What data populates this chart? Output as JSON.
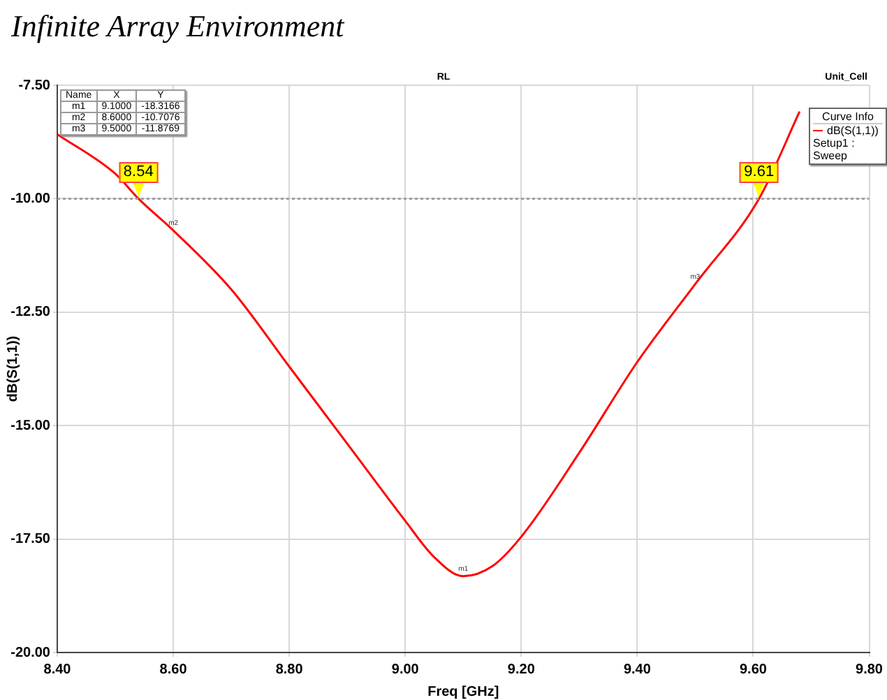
{
  "chart_data": {
    "type": "line",
    "title": "Infinite Array Environment",
    "subtitle": "RL",
    "xlabel": "Freq [GHz]",
    "ylabel": "dB(S(1,1))",
    "legend_title": "Curve Info",
    "legend": "top right",
    "series": [
      {
        "name": "dB(S(1,1))",
        "color": "#ff0000",
        "x": [
          8.4,
          8.5,
          8.54,
          8.6,
          8.7,
          8.8,
          8.9,
          9.0,
          9.05,
          9.1,
          9.15,
          9.2,
          9.3,
          9.4,
          9.5,
          9.61,
          9.68
        ],
        "values": [
          -8.58,
          -9.45,
          -10.0,
          -10.7,
          -12.0,
          -13.7,
          -15.4,
          -17.1,
          -17.9,
          -18.32,
          -18.1,
          -17.45,
          -15.6,
          -13.6,
          -11.88,
          -10.0,
          -8.08
        ]
      }
    ],
    "xlim": [
      8.4,
      9.8
    ],
    "ylim": [
      -20,
      -7.5
    ],
    "xticks": [
      {
        "value": 8.4,
        "label": "8.40"
      },
      {
        "value": 8.6,
        "label": "8.60"
      },
      {
        "value": 8.8,
        "label": "8.80"
      },
      {
        "value": 9.0,
        "label": "9.00"
      },
      {
        "value": 9.2,
        "label": "9.20"
      },
      {
        "value": 9.4,
        "label": "9.40"
      },
      {
        "value": 9.6,
        "label": "9.60"
      },
      {
        "value": 9.8,
        "label": "9.80"
      }
    ],
    "yticks": [
      {
        "value": -20,
        "label": "-20.00"
      },
      {
        "value": -17.5,
        "label": "-17.50"
      },
      {
        "value": -15,
        "label": "-15.00"
      },
      {
        "value": -12.5,
        "label": "-12.50"
      },
      {
        "value": -10,
        "label": "-10.00"
      },
      {
        "value": -7.5,
        "label": "-7.50"
      }
    ],
    "grid": true,
    "marker": "none",
    "line_style": "solid",
    "ref_lines": [
      {
        "axis": "y",
        "value": -10,
        "color": "#a0a0a0",
        "line_style": "dotted"
      }
    ],
    "annotations": [
      "Unit_Cell",
      "Setup1 : Sweep",
      "Name",
      "X",
      "Y",
      "9.1000",
      "-18.3166",
      "8.6000",
      "-10.7076",
      "9.5000",
      "-11.8769",
      {
        "text": "m1",
        "x": 9.1,
        "y": -18.32
      },
      {
        "text": "m2",
        "x": 8.6,
        "y": -10.7
      },
      {
        "text": "m3",
        "x": 9.5,
        "y": -11.88
      },
      {
        "text": "8.54",
        "x": 8.54,
        "y": -10
      },
      {
        "text": "9.61",
        "x": 9.61,
        "y": -10
      }
    ]
  }
}
